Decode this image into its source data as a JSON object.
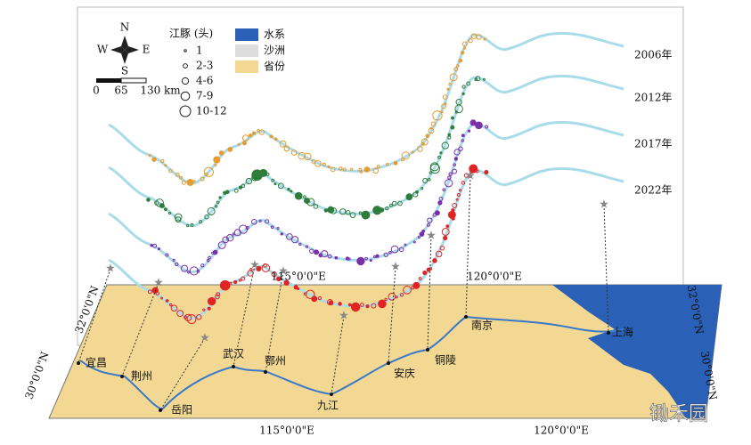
{
  "compass": {
    "n": "N",
    "s": "S",
    "w": "W",
    "e": "E"
  },
  "porpoise_legend": {
    "title": "江豚 (头)",
    "sizes": [
      "1",
      "2-3",
      "4-6",
      "7-9",
      "10-12"
    ]
  },
  "scale_bar": [
    "0",
    "65",
    "130 km"
  ],
  "map_legend": [
    "水系",
    "沙洲",
    "省份"
  ],
  "years": [
    "2006年",
    "2012年",
    "2017年",
    "2022年"
  ],
  "coordinates": {
    "top": [
      "115°0'0\"E",
      "120°0'0\"E"
    ],
    "bottom": [
      "115°0'0\"E",
      "120°0'0\"E"
    ],
    "left": [
      "32°0'0\"N",
      "30°0'0\"N"
    ],
    "right": [
      "32°0'0\"N",
      "30°0'0\"N"
    ]
  },
  "cities": [
    "宜昌",
    "荆州",
    "岳阳",
    "武汉",
    "鄂州",
    "九江",
    "安庆",
    "铜陵",
    "南京",
    "上海"
  ],
  "watermark": "锄禾园"
}
